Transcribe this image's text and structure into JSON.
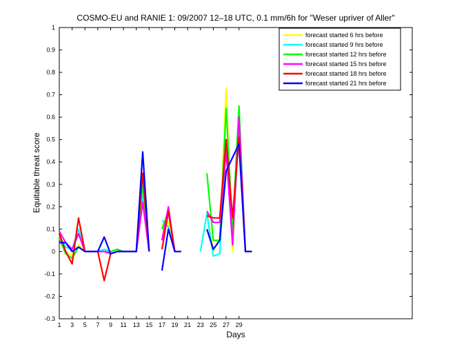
{
  "chart_data": {
    "type": "line",
    "title": "COSMO-EU and RANIE 1: 09/2007 12–18 UTC, 0.1 mm/6h for \"Weser upriver of Aller\"",
    "xlabel": "Days",
    "ylabel": "Equitable threat score",
    "xlim": [
      1,
      56
    ],
    "ylim": [
      -0.3,
      1
    ],
    "x_ticks": [
      1,
      3,
      5,
      7,
      9,
      11,
      13,
      15,
      17,
      19,
      21,
      23,
      25,
      27,
      29
    ],
    "y_ticks": [
      -0.3,
      -0.2,
      -0.1,
      0,
      0.1,
      0.2,
      0.3,
      0.4,
      0.5,
      0.6,
      0.7,
      0.8,
      0.9,
      1
    ],
    "y_tick_labels": [
      "-0.3",
      "-0.2",
      "-0.1",
      "0",
      "0.1",
      "0.2",
      "0.3",
      "0.4",
      "0.5",
      "0.6",
      "0.7",
      "0.8",
      "0.9",
      "1"
    ],
    "legend_position": "top-right",
    "series": [
      {
        "name": "forecast started 6 hrs before",
        "color": "#ffff00",
        "points": [
          [
            1,
            0.06
          ],
          [
            2,
            0.0
          ],
          [
            3,
            -0.02
          ],
          [
            4,
            0.03
          ],
          [
            5,
            0
          ],
          [
            6,
            0
          ],
          [
            7,
            0
          ],
          [
            8,
            0
          ],
          [
            9,
            0
          ],
          [
            10,
            0.01
          ],
          [
            11,
            0
          ],
          [
            12,
            0
          ],
          [
            13,
            0
          ],
          [
            14,
            0.25
          ],
          [
            15,
            0
          ],
          [
            17,
            0.12
          ],
          [
            18,
            0.13
          ],
          [
            19,
            0
          ],
          [
            24,
            0.18
          ],
          [
            25,
            0.0
          ],
          [
            26,
            0.06
          ],
          [
            27,
            0.73
          ],
          [
            28,
            0.0
          ],
          [
            29,
            0.6
          ],
          [
            30,
            0
          ],
          [
            31,
            0
          ]
        ]
      },
      {
        "name": "forecast started 9 hrs before",
        "color": "#00ffff",
        "points": [
          [
            1,
            0.07
          ],
          [
            2,
            0.02
          ],
          [
            3,
            0.01
          ],
          [
            4,
            0.1
          ],
          [
            5,
            0
          ],
          [
            6,
            0
          ],
          [
            7,
            0
          ],
          [
            8,
            0.01
          ],
          [
            9,
            0
          ],
          [
            10,
            0.01
          ],
          [
            11,
            0
          ],
          [
            12,
            0
          ],
          [
            13,
            0
          ],
          [
            14,
            0.25
          ],
          [
            15,
            0
          ],
          [
            17,
            0.14
          ],
          [
            18,
            0.11
          ],
          [
            19,
            0
          ],
          [
            23,
            0
          ],
          [
            24,
            0.17
          ],
          [
            25,
            -0.02
          ],
          [
            26,
            -0.01
          ],
          [
            27,
            0.5
          ],
          [
            28,
            0.05
          ],
          [
            29,
            0.55
          ],
          [
            30,
            0
          ],
          [
            31,
            0
          ]
        ]
      },
      {
        "name": "forecast started 12 hrs before",
        "color": "#00ff00",
        "points": [
          [
            1,
            0.06
          ],
          [
            2,
            -0.01
          ],
          [
            3,
            -0.03
          ],
          [
            4,
            0.02
          ],
          [
            5,
            0
          ],
          [
            6,
            0
          ],
          [
            7,
            0
          ],
          [
            8,
            0
          ],
          [
            9,
            0
          ],
          [
            10,
            0.01
          ],
          [
            11,
            0
          ],
          [
            12,
            0
          ],
          [
            13,
            0
          ],
          [
            14,
            0.3
          ],
          [
            15,
            0
          ],
          [
            17,
            0.1
          ],
          [
            18,
            0.18
          ],
          [
            19,
            0
          ],
          [
            24,
            0.35
          ],
          [
            25,
            0.05
          ],
          [
            26,
            0.05
          ],
          [
            27,
            0.64
          ],
          [
            28,
            0.1
          ],
          [
            29,
            0.65
          ],
          [
            30,
            0
          ],
          [
            31,
            0
          ]
        ]
      },
      {
        "name": "forecast started 15 hrs before",
        "color": "#ff00ff",
        "points": [
          [
            1,
            0.09
          ],
          [
            2,
            0.04
          ],
          [
            3,
            0.01
          ],
          [
            4,
            0.08
          ],
          [
            5,
            0
          ],
          [
            6,
            0
          ],
          [
            7,
            0
          ],
          [
            8,
            0
          ],
          [
            9,
            -0.01
          ],
          [
            10,
            0
          ],
          [
            11,
            0
          ],
          [
            12,
            0
          ],
          [
            13,
            0
          ],
          [
            14,
            0.22
          ],
          [
            15,
            0
          ],
          [
            17,
            0.05
          ],
          [
            18,
            0.2
          ],
          [
            19,
            0
          ],
          [
            24,
            0.18
          ],
          [
            25,
            0.13
          ],
          [
            26,
            0.13
          ],
          [
            27,
            0.45
          ],
          [
            28,
            0.03
          ],
          [
            29,
            0.6
          ],
          [
            30,
            0
          ],
          [
            31,
            0
          ]
        ]
      },
      {
        "name": "forecast started 18 hrs before",
        "color": "#ff0000",
        "points": [
          [
            1,
            0.08
          ],
          [
            2,
            0.0
          ],
          [
            3,
            -0.055
          ],
          [
            4,
            0.15
          ],
          [
            5,
            0
          ],
          [
            6,
            0
          ],
          [
            7,
            0
          ],
          [
            8,
            -0.13
          ],
          [
            9,
            -0.01
          ],
          [
            10,
            0
          ],
          [
            11,
            0
          ],
          [
            12,
            0
          ],
          [
            13,
            0
          ],
          [
            14,
            0.35
          ],
          [
            15,
            0
          ],
          [
            17,
            0.01
          ],
          [
            18,
            0.18
          ],
          [
            19,
            0
          ],
          [
            24,
            0.16
          ],
          [
            25,
            0.15
          ],
          [
            26,
            0.15
          ],
          [
            27,
            0.5
          ],
          [
            28,
            0.15
          ],
          [
            29,
            0.51
          ],
          [
            30,
            0
          ],
          [
            31,
            0
          ]
        ]
      },
      {
        "name": "forecast started 21 hrs before",
        "color": "#0000ff",
        "points": [
          [
            1,
            0.04
          ],
          [
            2,
            0.04
          ],
          [
            3,
            0.0
          ],
          [
            4,
            0.02
          ],
          [
            5,
            0
          ],
          [
            6,
            0
          ],
          [
            7,
            0
          ],
          [
            8,
            0.065
          ],
          [
            9,
            -0.01
          ],
          [
            10,
            0
          ],
          [
            11,
            0
          ],
          [
            12,
            0
          ],
          [
            13,
            0
          ],
          [
            14,
            0.445
          ],
          [
            15,
            0
          ],
          [
            17,
            -0.085
          ],
          [
            18,
            0.1
          ],
          [
            19,
            0
          ],
          [
            20,
            0
          ],
          [
            24,
            0.1
          ],
          [
            25,
            0.01
          ],
          [
            26,
            0.05
          ],
          [
            27,
            0.36
          ],
          [
            28,
            0.42
          ],
          [
            29,
            0.48
          ],
          [
            30,
            0
          ],
          [
            31,
            0
          ]
        ]
      }
    ]
  }
}
